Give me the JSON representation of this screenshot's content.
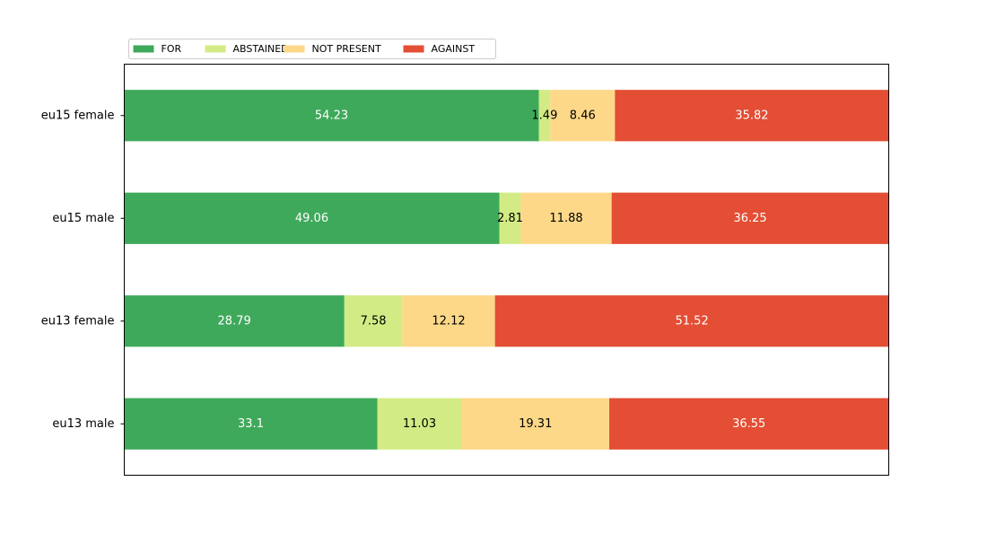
{
  "chart_data": {
    "type": "bar",
    "orientation": "horizontal",
    "stacked": true,
    "categories": [
      "eu15 female",
      "eu15 male",
      "eu13 female",
      "eu13 male"
    ],
    "series": [
      {
        "name": "FOR",
        "color": "#3fa95b",
        "values": [
          54.23,
          49.06,
          28.79,
          33.1
        ],
        "label_color": "#ffffff"
      },
      {
        "name": "ABSTAINED",
        "color": "#d3eb84",
        "values": [
          1.49,
          2.81,
          7.58,
          11.03
        ],
        "label_color": "#000000"
      },
      {
        "name": "NOT PRESENT",
        "color": "#fdd888",
        "values": [
          8.46,
          11.88,
          12.12,
          19.31
        ],
        "label_color": "#000000"
      },
      {
        "name": "AGAINST",
        "color": "#e34e34",
        "values": [
          35.82,
          36.25,
          51.52,
          36.55
        ],
        "label_color": "#ffffff"
      }
    ],
    "xlim": [
      0,
      100
    ],
    "x_axis_visible": false,
    "grid": false,
    "legend_position": "top-left"
  }
}
